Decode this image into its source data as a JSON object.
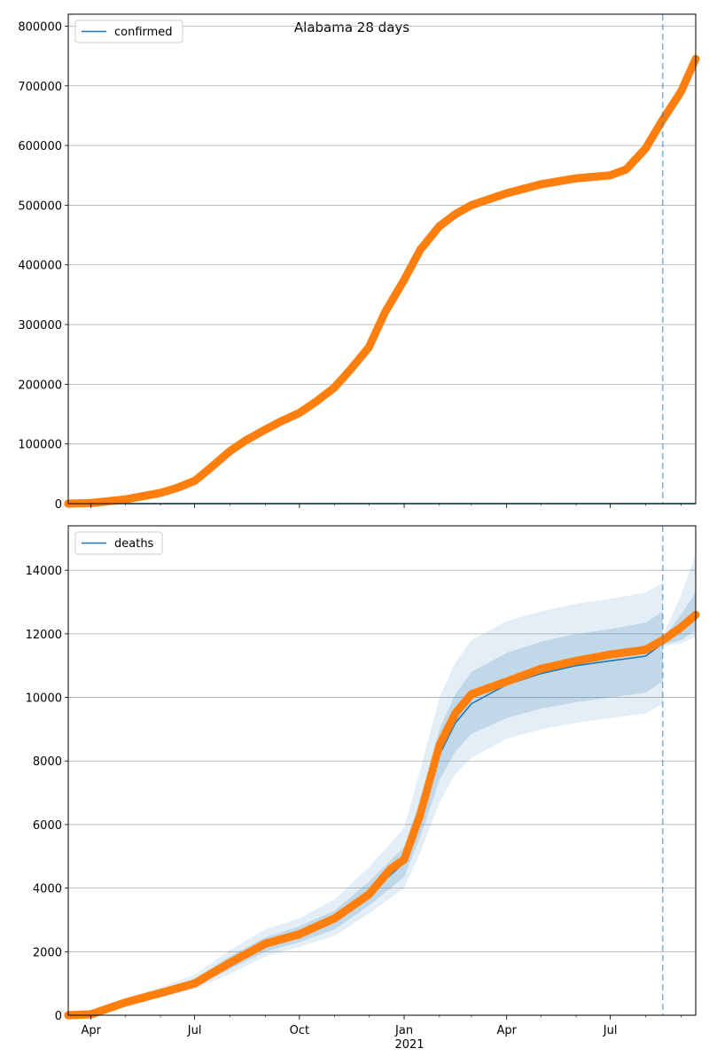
{
  "title": "Alabama 28 days",
  "colors": {
    "line": "#1f77b4",
    "points": "#ff7f0e",
    "band": "#1f77b4",
    "grid": "#b0b0b0",
    "forecast_line": "#1f77b4"
  },
  "x_axis": {
    "ticks": [
      {
        "date": "2020-04-01",
        "label": "Apr"
      },
      {
        "date": "2020-07-01",
        "label": "Jul"
      },
      {
        "date": "2020-10-01",
        "label": "Oct"
      },
      {
        "date": "2021-01-01",
        "label": "Jan"
      },
      {
        "date": "2021-04-01",
        "label": "Apr"
      },
      {
        "date": "2021-07-01",
        "label": "Jul"
      }
    ],
    "year_label": "2021",
    "range": [
      "2020-03-12",
      "2021-09-14"
    ]
  },
  "forecast_start": "2021-08-16",
  "chart_data": [
    {
      "type": "line",
      "legend": "confirmed",
      "legend_position": "top-left",
      "grid": "horizontal",
      "ylim": [
        0,
        820000
      ],
      "yticks": [
        0,
        100000,
        200000,
        300000,
        400000,
        500000,
        600000,
        700000,
        800000
      ],
      "model_line": [
        {
          "x": "2020-03-12",
          "y": 0
        },
        {
          "x": "2021-09-14",
          "y": 0
        }
      ],
      "observed": [
        {
          "x": "2020-03-12",
          "y": 0
        },
        {
          "x": "2020-04-01",
          "y": 1000
        },
        {
          "x": "2020-05-01",
          "y": 7000
        },
        {
          "x": "2020-06-01",
          "y": 18000
        },
        {
          "x": "2020-06-15",
          "y": 26000
        },
        {
          "x": "2020-07-01",
          "y": 38000
        },
        {
          "x": "2020-07-15",
          "y": 60000
        },
        {
          "x": "2020-08-01",
          "y": 88000
        },
        {
          "x": "2020-08-15",
          "y": 106000
        },
        {
          "x": "2020-09-01",
          "y": 124000
        },
        {
          "x": "2020-09-15",
          "y": 138000
        },
        {
          "x": "2020-10-01",
          "y": 152000
        },
        {
          "x": "2020-10-15",
          "y": 170000
        },
        {
          "x": "2020-11-01",
          "y": 195000
        },
        {
          "x": "2020-11-15",
          "y": 225000
        },
        {
          "x": "2020-12-01",
          "y": 262000
        },
        {
          "x": "2020-12-15",
          "y": 320000
        },
        {
          "x": "2021-01-01",
          "y": 375000
        },
        {
          "x": "2021-01-15",
          "y": 425000
        },
        {
          "x": "2021-02-01",
          "y": 465000
        },
        {
          "x": "2021-02-15",
          "y": 485000
        },
        {
          "x": "2021-03-01",
          "y": 500000
        },
        {
          "x": "2021-04-01",
          "y": 520000
        },
        {
          "x": "2021-05-01",
          "y": 535000
        },
        {
          "x": "2021-06-01",
          "y": 545000
        },
        {
          "x": "2021-07-01",
          "y": 550000
        },
        {
          "x": "2021-07-15",
          "y": 560000
        },
        {
          "x": "2021-08-01",
          "y": 595000
        },
        {
          "x": "2021-08-15",
          "y": 640000
        },
        {
          "x": "2021-09-01",
          "y": 690000
        },
        {
          "x": "2021-09-14",
          "y": 745000
        }
      ]
    },
    {
      "type": "line",
      "legend": "deaths",
      "legend_position": "top-left",
      "grid": "horizontal",
      "ylim": [
        0,
        15400
      ],
      "yticks": [
        0,
        2000,
        4000,
        6000,
        8000,
        10000,
        12000,
        14000
      ],
      "model_line": [
        {
          "x": "2020-03-12",
          "y": 0
        },
        {
          "x": "2020-04-01",
          "y": 30
        },
        {
          "x": "2020-05-01",
          "y": 400
        },
        {
          "x": "2020-06-01",
          "y": 700
        },
        {
          "x": "2020-07-01",
          "y": 1000
        },
        {
          "x": "2020-08-01",
          "y": 1650
        },
        {
          "x": "2020-09-01",
          "y": 2200
        },
        {
          "x": "2020-10-01",
          "y": 2550
        },
        {
          "x": "2020-11-01",
          "y": 3000
        },
        {
          "x": "2020-12-01",
          "y": 3800
        },
        {
          "x": "2021-01-01",
          "y": 4800
        },
        {
          "x": "2021-01-15",
          "y": 6200
        },
        {
          "x": "2021-02-01",
          "y": 8200
        },
        {
          "x": "2021-02-15",
          "y": 9200
        },
        {
          "x": "2021-03-01",
          "y": 9800
        },
        {
          "x": "2021-04-01",
          "y": 10400
        },
        {
          "x": "2021-05-01",
          "y": 10750
        },
        {
          "x": "2021-06-01",
          "y": 11000
        },
        {
          "x": "2021-07-01",
          "y": 11150
        },
        {
          "x": "2021-08-01",
          "y": 11300
        },
        {
          "x": "2021-08-16",
          "y": 11700
        }
      ],
      "band_inner": [
        {
          "x": "2020-03-12",
          "lo": 0,
          "hi": 0
        },
        {
          "x": "2020-04-01",
          "lo": 25,
          "hi": 35
        },
        {
          "x": "2020-05-01",
          "lo": 360,
          "hi": 450
        },
        {
          "x": "2020-06-01",
          "lo": 620,
          "hi": 780
        },
        {
          "x": "2020-07-01",
          "lo": 900,
          "hi": 1150
        },
        {
          "x": "2020-08-01",
          "lo": 1450,
          "hi": 1850
        },
        {
          "x": "2020-09-01",
          "lo": 2000,
          "hi": 2450
        },
        {
          "x": "2020-10-01",
          "lo": 2300,
          "hi": 2800
        },
        {
          "x": "2020-11-01",
          "lo": 2700,
          "hi": 3300
        },
        {
          "x": "2020-12-01",
          "lo": 3450,
          "hi": 4200
        },
        {
          "x": "2021-01-01",
          "lo": 4350,
          "hi": 5300
        },
        {
          "x": "2021-01-15",
          "lo": 5600,
          "hi": 6800
        },
        {
          "x": "2021-02-01",
          "lo": 7400,
          "hi": 9000
        },
        {
          "x": "2021-02-15",
          "lo": 8300,
          "hi": 10100
        },
        {
          "x": "2021-03-01",
          "lo": 8850,
          "hi": 10800
        },
        {
          "x": "2021-04-01",
          "lo": 9350,
          "hi": 11400
        },
        {
          "x": "2021-05-01",
          "lo": 9650,
          "hi": 11750
        },
        {
          "x": "2021-06-01",
          "lo": 9850,
          "hi": 12000
        },
        {
          "x": "2021-07-01",
          "lo": 10000,
          "hi": 12150
        },
        {
          "x": "2021-08-01",
          "lo": 10150,
          "hi": 12350
        },
        {
          "x": "2021-08-16",
          "lo": 10500,
          "hi": 12700
        }
      ],
      "band_outer": [
        {
          "x": "2020-03-12",
          "lo": 0,
          "hi": 0
        },
        {
          "x": "2020-04-01",
          "lo": 20,
          "hi": 45
        },
        {
          "x": "2020-05-01",
          "lo": 320,
          "hi": 520
        },
        {
          "x": "2020-06-01",
          "lo": 560,
          "hi": 880
        },
        {
          "x": "2020-07-01",
          "lo": 820,
          "hi": 1280
        },
        {
          "x": "2020-08-01",
          "lo": 1300,
          "hi": 2050
        },
        {
          "x": "2020-09-01",
          "lo": 1850,
          "hi": 2700
        },
        {
          "x": "2020-10-01",
          "lo": 2150,
          "hi": 3050
        },
        {
          "x": "2020-11-01",
          "lo": 2500,
          "hi": 3650
        },
        {
          "x": "2020-12-01",
          "lo": 3200,
          "hi": 4650
        },
        {
          "x": "2021-01-01",
          "lo": 4000,
          "hi": 5900
        },
        {
          "x": "2021-01-15",
          "lo": 5100,
          "hi": 7700
        },
        {
          "x": "2021-02-01",
          "lo": 6700,
          "hi": 10000
        },
        {
          "x": "2021-02-15",
          "lo": 7600,
          "hi": 11100
        },
        {
          "x": "2021-03-01",
          "lo": 8100,
          "hi": 11800
        },
        {
          "x": "2021-04-01",
          "lo": 8700,
          "hi": 12400
        },
        {
          "x": "2021-05-01",
          "lo": 9000,
          "hi": 12700
        },
        {
          "x": "2021-06-01",
          "lo": 9200,
          "hi": 12950
        },
        {
          "x": "2021-07-01",
          "lo": 9350,
          "hi": 13100
        },
        {
          "x": "2021-08-01",
          "lo": 9500,
          "hi": 13300
        },
        {
          "x": "2021-08-16",
          "lo": 9800,
          "hi": 13600
        }
      ],
      "forecast_line": [
        {
          "x": "2021-08-16",
          "y": 11750
        },
        {
          "x": "2021-09-01",
          "y": 12150
        },
        {
          "x": "2021-09-14",
          "y": 12600
        }
      ],
      "forecast_band_inner": [
        {
          "x": "2021-08-16",
          "lo": 11650,
          "hi": 11850
        },
        {
          "x": "2021-09-01",
          "lo": 11800,
          "hi": 12600
        },
        {
          "x": "2021-09-14",
          "lo": 12100,
          "hi": 13300
        }
      ],
      "forecast_band_outer": [
        {
          "x": "2021-08-16",
          "lo": 11600,
          "hi": 11950
        },
        {
          "x": "2021-09-01",
          "lo": 11700,
          "hi": 13200
        },
        {
          "x": "2021-09-14",
          "lo": 11900,
          "hi": 14500
        }
      ],
      "observed": [
        {
          "x": "2020-03-12",
          "y": 0
        },
        {
          "x": "2020-04-01",
          "y": 30
        },
        {
          "x": "2020-05-01",
          "y": 400
        },
        {
          "x": "2020-06-01",
          "y": 700
        },
        {
          "x": "2020-07-01",
          "y": 1000
        },
        {
          "x": "2020-08-01",
          "y": 1650
        },
        {
          "x": "2020-09-01",
          "y": 2250
        },
        {
          "x": "2020-10-01",
          "y": 2550
        },
        {
          "x": "2020-11-01",
          "y": 3050
        },
        {
          "x": "2020-12-01",
          "y": 3800
        },
        {
          "x": "2020-12-20",
          "y": 4600
        },
        {
          "x": "2021-01-01",
          "y": 4900
        },
        {
          "x": "2021-01-15",
          "y": 6300
        },
        {
          "x": "2021-02-01",
          "y": 8500
        },
        {
          "x": "2021-02-15",
          "y": 9500
        },
        {
          "x": "2021-03-01",
          "y": 10100
        },
        {
          "x": "2021-04-01",
          "y": 10500
        },
        {
          "x": "2021-05-01",
          "y": 10900
        },
        {
          "x": "2021-06-01",
          "y": 11150
        },
        {
          "x": "2021-07-01",
          "y": 11350
        },
        {
          "x": "2021-08-01",
          "y": 11500
        },
        {
          "x": "2021-08-16",
          "y": 11800
        },
        {
          "x": "2021-09-01",
          "y": 12200
        },
        {
          "x": "2021-09-14",
          "y": 12600
        }
      ]
    }
  ]
}
